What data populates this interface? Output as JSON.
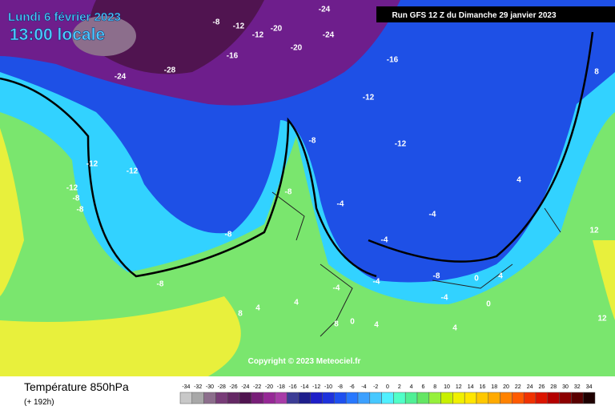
{
  "header": {
    "date": "Lundi 6 février 2023",
    "time": "13:00 locale",
    "run": "Run GFS 12 Z du Dimanche 29 janvier 2023"
  },
  "copyright": "Copyright © 2023 Meteociel.fr",
  "legend": {
    "title": "Température 850hPa",
    "subtitle": "(+ 192h)",
    "values": [
      -34,
      -32,
      -30,
      -28,
      -26,
      -24,
      -22,
      -20,
      -18,
      -16,
      -14,
      -12,
      -10,
      -8,
      -6,
      -4,
      -2,
      0,
      2,
      4,
      6,
      8,
      10,
      12,
      14,
      16,
      18,
      20,
      22,
      24,
      26,
      28,
      30,
      32,
      34
    ],
    "colors": [
      "#c8c8c8",
      "#a8a8a8",
      "#8c6e8c",
      "#783c78",
      "#642864",
      "#501450",
      "#781e78",
      "#962896",
      "#a83ca8",
      "#3c3c96",
      "#1e1e8c",
      "#1e1ec8",
      "#1e32dc",
      "#1e50f0",
      "#2878ff",
      "#3ca0ff",
      "#46c8ff",
      "#50f0ff",
      "#50ffc8",
      "#50f096",
      "#64e664",
      "#96f03c",
      "#c8f000",
      "#f0f000",
      "#ffe600",
      "#ffc800",
      "#ffaa00",
      "#ff8200",
      "#ff5a00",
      "#f03200",
      "#dc1400",
      "#b40000",
      "#8c0000",
      "#5a0000",
      "#1e0000"
    ]
  },
  "contour_labels": [
    -24,
    -8,
    -12,
    -20,
    -24,
    -24,
    -12,
    -16,
    -28,
    -16,
    -20,
    -12,
    -8,
    -12,
    -12,
    -12,
    -8,
    -8,
    -12,
    -4,
    -4,
    -4,
    -8,
    -8,
    -8,
    -8,
    -4,
    0,
    4,
    4,
    4,
    8,
    4,
    8,
    0,
    0,
    4,
    -4,
    -4,
    4,
    12,
    12,
    8
  ]
}
